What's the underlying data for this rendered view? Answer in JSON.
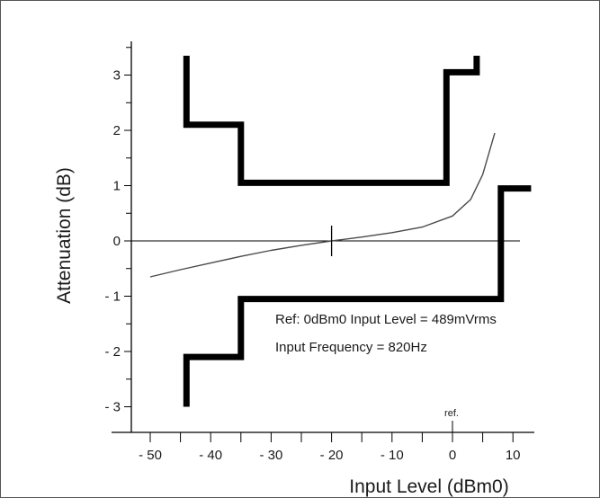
{
  "chart_data": {
    "type": "line",
    "xlabel": "Input Level (dBm0)",
    "ylabel": "Attenuation (dB)",
    "xlim": [
      -58,
      14
    ],
    "ylim": [
      -3.5,
      3.5
    ],
    "x_ticks": [
      {
        "value": -50,
        "label": "- 50"
      },
      {
        "value": -40,
        "label": "- 40"
      },
      {
        "value": -30,
        "label": "- 30"
      },
      {
        "value": -20,
        "label": "- 20"
      },
      {
        "value": -10,
        "label": "- 10"
      },
      {
        "value": 0,
        "label": "0"
      },
      {
        "value": 10,
        "label": "10"
      }
    ],
    "y_ticks": [
      {
        "value": 3,
        "label": "3"
      },
      {
        "value": 2,
        "label": "2"
      },
      {
        "value": 1,
        "label": "1"
      },
      {
        "value": 0,
        "label": "0"
      },
      {
        "value": -1,
        "label": "- 1"
      },
      {
        "value": -2,
        "label": "- 2"
      },
      {
        "value": -3,
        "label": "- 3"
      }
    ],
    "x_minor_step": 5,
    "y_minor_step": 0.5,
    "reference_label": "ref.",
    "reference_x": 0,
    "marker_x": -20,
    "series": [
      {
        "role": "upper-limit",
        "x": [
          -44,
          -44,
          -35,
          -35,
          -1,
          -1,
          4,
          4
        ],
        "y": [
          3.35,
          2.1,
          2.1,
          1.05,
          1.05,
          3.05,
          3.05,
          3.35
        ]
      },
      {
        "role": "lower-limit",
        "x": [
          -44,
          -44,
          -35,
          -35,
          8,
          8,
          13
        ],
        "y": [
          -3.0,
          -2.1,
          -2.1,
          -1.05,
          -1.05,
          0.95,
          0.95
        ]
      },
      {
        "role": "measured",
        "x": [
          -50,
          -45,
          -40,
          -35,
          -30,
          -25,
          -20,
          -15,
          -10,
          -5,
          0,
          3,
          5,
          7
        ],
        "y": [
          -0.65,
          -0.52,
          -0.4,
          -0.28,
          -0.17,
          -0.08,
          0,
          0.07,
          0.15,
          0.25,
          0.45,
          0.75,
          1.2,
          1.95
        ]
      }
    ],
    "annotations": [
      "Ref: 0dBm0 Input Level = 489mVrms",
      "Input Frequency = 820Hz"
    ]
  }
}
